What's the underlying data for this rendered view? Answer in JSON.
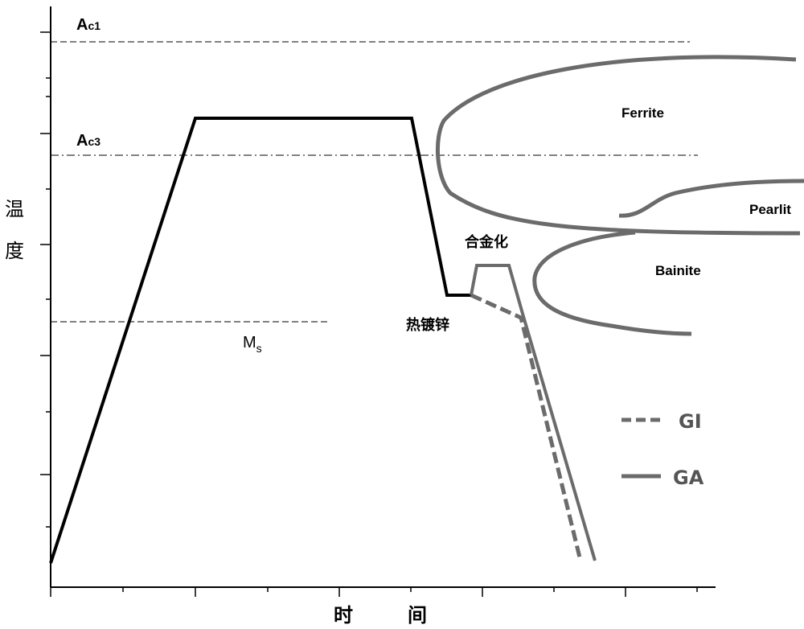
{
  "axes": {
    "y_label_line1": "温",
    "y_label_line2": "度",
    "x_label_part1": "时",
    "x_label_part2": "间"
  },
  "critical_lines": {
    "ac1": {
      "main": "A",
      "sub": "c1"
    },
    "ac3": {
      "main": "A",
      "sub": "c3"
    },
    "ms": {
      "main": "M",
      "sub": "s"
    }
  },
  "regions": {
    "ferrite": "Ferrite",
    "pearlite": "Pearlit",
    "bainite": "Bainite"
  },
  "process": {
    "alloying": "合金化",
    "hot_dip_galvanizing": "热镀锌"
  },
  "legend": {
    "gi": "GI",
    "ga": "GA"
  },
  "colors": {
    "process_line": "#000000",
    "curve_gray": "#6b6b6b",
    "legend_text": "#555555"
  }
}
